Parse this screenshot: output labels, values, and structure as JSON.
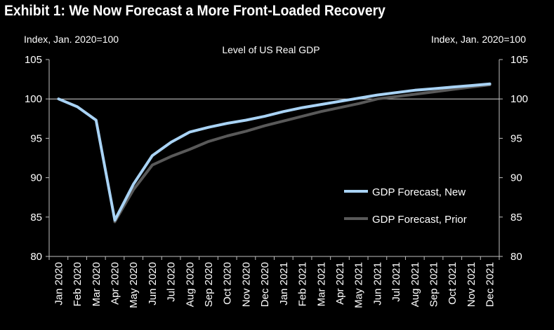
{
  "exhibit_title": "Exhibit 1: We Now Forecast a More Front-Loaded Recovery",
  "chart_data": {
    "type": "line",
    "title": "Level of US Real GDP",
    "ylabel_left": "Index, Jan. 2020=100",
    "ylabel_right": "Index, Jan. 2020=100",
    "xlabel": "",
    "categories": [
      "Jan 2020",
      "Feb 2020",
      "Mar 2020",
      "Apr 2020",
      "May 2020",
      "Jun 2020",
      "Jul 2020",
      "Aug 2020",
      "Sep 2020",
      "Oct 2020",
      "Nov 2020",
      "Dec 2020",
      "Jan 2021",
      "Feb 2021",
      "Mar 2021",
      "Apr 2021",
      "May 2021",
      "Jun 2021",
      "Jul 2021",
      "Aug 2021",
      "Sep 2021",
      "Oct 2021",
      "Nov 2021",
      "Dec 2021"
    ],
    "ylim": [
      80,
      105
    ],
    "yticks": [
      "80",
      "85",
      "90",
      "95",
      "100",
      "105"
    ],
    "reference_line": 100,
    "legend_position": "right-center",
    "series": [
      {
        "name": "GDP Forecast, New",
        "color": "#a9d3f5",
        "values": [
          100,
          99,
          97.3,
          84.6,
          89.2,
          92.8,
          94.5,
          95.8,
          96.4,
          96.9,
          97.3,
          97.8,
          98.4,
          98.9,
          99.3,
          99.7,
          100.1,
          100.5,
          100.8,
          101.1,
          101.3,
          101.5,
          101.7,
          101.9
        ]
      },
      {
        "name": "GDP Forecast, Prior",
        "color": "#595959",
        "values": [
          null,
          null,
          null,
          84.4,
          88.5,
          91.6,
          92.7,
          93.6,
          94.6,
          95.3,
          95.9,
          96.6,
          97.2,
          97.8,
          98.4,
          98.9,
          99.4,
          100.0,
          100.3,
          100.6,
          100.9,
          101.2,
          101.5,
          101.8
        ]
      }
    ]
  }
}
